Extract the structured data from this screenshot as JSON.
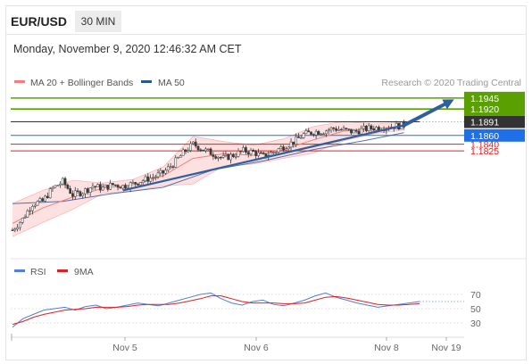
{
  "header": {
    "symbol": "EUR/USD",
    "timeframe": "30 MIN",
    "datetime": "Monday, November 9, 2020 12:46:32 AM CET"
  },
  "legend": {
    "ma20_label": "MA 20 + Bollinger Bands",
    "ma50_label": "MA 50",
    "credit": "Research © 2020 Trading Central",
    "rsi_label": "RSI",
    "rsi_ma_label": "9MA"
  },
  "colors": {
    "resistance": "#5aa000",
    "current": "#333333",
    "pivot": "#1f6fe8",
    "support": "#e02020",
    "ma20": "#f08080",
    "band_fill": "#fcd6d6",
    "ma50": "#2a5597",
    "arrow": "#2f5fa0",
    "candle_up": "#3a3a3a",
    "candle_down": "#3a3a3a",
    "rsi": "#4f7fe0",
    "rsi_ma": "#e02020"
  },
  "chart_data": [
    {
      "type": "candlestick",
      "title": "EUR/USD 30 MIN",
      "ylim": [
        1.159,
        1.1965
      ],
      "x_ticks": [
        "Nov 5",
        "Nov 6",
        "Nov 8",
        "Nov 19"
      ],
      "levels": [
        {
          "label": "1.1945",
          "value": 1.1945,
          "role": "resistance"
        },
        {
          "label": "1.1920",
          "value": 1.192,
          "role": "resistance"
        },
        {
          "label": "1.1891",
          "value": 1.1891,
          "role": "current"
        },
        {
          "label": "1.1860",
          "value": 1.186,
          "role": "pivot"
        },
        {
          "label": "1.1840",
          "value": 1.184,
          "role": "support"
        },
        {
          "label": "1.1825",
          "value": 1.1825,
          "role": "support"
        }
      ],
      "close_path": [
        [
          0,
          1.1645
        ],
        [
          4,
          1.167
        ],
        [
          8,
          1.1705
        ],
        [
          12,
          1.171
        ],
        [
          16,
          1.174
        ],
        [
          20,
          1.1755
        ],
        [
          24,
          1.1725
        ],
        [
          28,
          1.1732
        ],
        [
          32,
          1.1745
        ],
        [
          36,
          1.174
        ],
        [
          40,
          1.1748
        ],
        [
          44,
          1.1745
        ],
        [
          48,
          1.175
        ],
        [
          52,
          1.1758
        ],
        [
          56,
          1.1765
        ],
        [
          60,
          1.1775
        ],
        [
          64,
          1.1795
        ],
        [
          68,
          1.182
        ],
        [
          72,
          1.184
        ],
        [
          76,
          1.1828
        ],
        [
          80,
          1.1818
        ],
        [
          84,
          1.1808
        ],
        [
          88,
          1.1815
        ],
        [
          92,
          1.1825
        ],
        [
          96,
          1.1822
        ],
        [
          100,
          1.1812
        ],
        [
          104,
          1.1822
        ],
        [
          108,
          1.1835
        ],
        [
          112,
          1.1845
        ],
        [
          116,
          1.1862
        ],
        [
          120,
          1.1868
        ],
        [
          124,
          1.187
        ],
        [
          128,
          1.1876
        ],
        [
          132,
          1.1872
        ],
        [
          136,
          1.1868
        ],
        [
          140,
          1.1874
        ],
        [
          144,
          1.1877
        ],
        [
          148,
          1.1879
        ],
        [
          152,
          1.1881
        ],
        [
          156,
          1.1883
        ]
      ],
      "ma20": [
        [
          0,
          1.166
        ],
        [
          12,
          1.1695
        ],
        [
          24,
          1.172
        ],
        [
          36,
          1.174
        ],
        [
          48,
          1.1748
        ],
        [
          60,
          1.1768
        ],
        [
          72,
          1.1808
        ],
        [
          84,
          1.1818
        ],
        [
          96,
          1.1815
        ],
        [
          108,
          1.1828
        ],
        [
          120,
          1.185
        ],
        [
          132,
          1.187
        ],
        [
          144,
          1.1875
        ],
        [
          156,
          1.1881
        ]
      ],
      "bollinger_upper": [
        [
          0,
          1.1705
        ],
        [
          12,
          1.1735
        ],
        [
          24,
          1.1758
        ],
        [
          36,
          1.1752
        ],
        [
          48,
          1.176
        ],
        [
          60,
          1.1788
        ],
        [
          72,
          1.1858
        ],
        [
          84,
          1.1846
        ],
        [
          96,
          1.1838
        ],
        [
          108,
          1.1852
        ],
        [
          120,
          1.188
        ],
        [
          132,
          1.1892
        ],
        [
          144,
          1.1886
        ],
        [
          156,
          1.189
        ]
      ],
      "bollinger_lower": [
        [
          0,
          1.163
        ],
        [
          12,
          1.1662
        ],
        [
          24,
          1.1692
        ],
        [
          36,
          1.1728
        ],
        [
          48,
          1.1734
        ],
        [
          60,
          1.1745
        ],
        [
          72,
          1.175
        ],
        [
          84,
          1.179
        ],
        [
          96,
          1.1795
        ],
        [
          108,
          1.1808
        ],
        [
          120,
          1.182
        ],
        [
          132,
          1.1848
        ],
        [
          144,
          1.1864
        ],
        [
          156,
          1.1872
        ]
      ],
      "ma50": [
        [
          0,
          1.1705
        ],
        [
          20,
          1.171
        ],
        [
          40,
          1.1728
        ],
        [
          60,
          1.1742
        ],
        [
          80,
          1.1782
        ],
        [
          100,
          1.1802
        ],
        [
          120,
          1.1828
        ],
        [
          140,
          1.1848
        ],
        [
          156,
          1.1866
        ]
      ],
      "trendline": [
        [
          44,
          1.1735
        ],
        [
          156,
          1.1883
        ]
      ],
      "projection_arrow": [
        [
          156,
          1.1883
        ],
        [
          176,
          1.1942
        ]
      ]
    },
    {
      "type": "line",
      "title": "RSI",
      "ylim": [
        20,
        80
      ],
      "y_ticks": [
        70,
        50,
        30
      ],
      "series": [
        {
          "name": "RSI",
          "values": [
            24,
            36,
            42,
            48,
            50,
            52,
            48,
            53,
            55,
            50,
            52,
            55,
            58,
            56,
            54,
            58,
            62,
            66,
            70,
            72,
            64,
            58,
            55,
            60,
            62,
            56,
            54,
            58,
            62,
            68,
            72,
            66,
            62,
            58,
            55,
            52,
            54,
            56,
            58,
            60
          ]
        },
        {
          "name": "9MA",
          "values": [
            28,
            32,
            38,
            42,
            45,
            48,
            49,
            50,
            52,
            52,
            52,
            53,
            55,
            56,
            56,
            56,
            58,
            61,
            64,
            68,
            68,
            64,
            60,
            58,
            58,
            58,
            57,
            57,
            58,
            62,
            66,
            67,
            65,
            62,
            59,
            56,
            55,
            55,
            56,
            57
          ]
        }
      ]
    }
  ]
}
